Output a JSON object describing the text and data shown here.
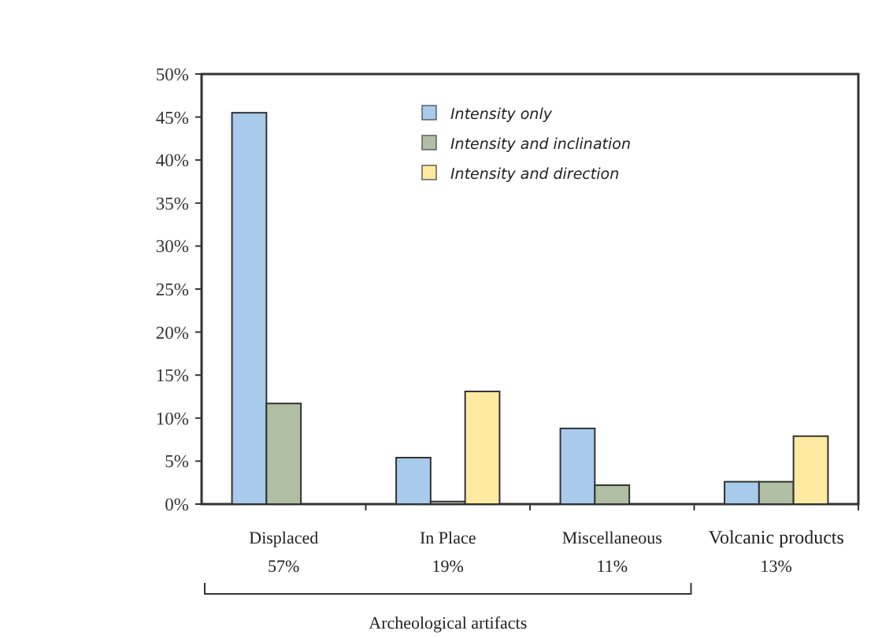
{
  "chart_data": {
    "type": "bar",
    "categories": [
      "Displaced\n57%",
      "In Place\n19%",
      "Miscellaneous\n11%",
      "Volcanic products\n13%"
    ],
    "series": [
      {
        "name": "Intensity only",
        "color": "#a8cbec",
        "values": [
          45.5,
          5.4,
          8.8,
          2.6
        ]
      },
      {
        "name": "Intensity and inclination",
        "color": "#b0bfa4",
        "values": [
          11.7,
          0.3,
          2.2,
          2.6
        ]
      },
      {
        "name": "Intensity and direction",
        "color": "#fdeaa0",
        "values": [
          null,
          13.1,
          null,
          7.9
        ]
      }
    ],
    "ylim": [
      0,
      50
    ],
    "yticks": [
      {
        "value": 0,
        "label": "0%"
      },
      {
        "value": 5,
        "label": "5%"
      },
      {
        "value": 10,
        "label": "10%"
      },
      {
        "value": 15,
        "label": "15%"
      },
      {
        "value": 20,
        "label": "20%"
      },
      {
        "value": 25,
        "label": "25%"
      },
      {
        "value": 30,
        "label": "30%"
      },
      {
        "value": 35,
        "label": "35%"
      },
      {
        "value": 40,
        "label": "40%"
      },
      {
        "value": 45,
        "label": "45%"
      },
      {
        "value": 50,
        "label": "50%"
      }
    ],
    "grid": false,
    "legend": "top right",
    "annotations": [
      "Archeological artifacts"
    ]
  }
}
